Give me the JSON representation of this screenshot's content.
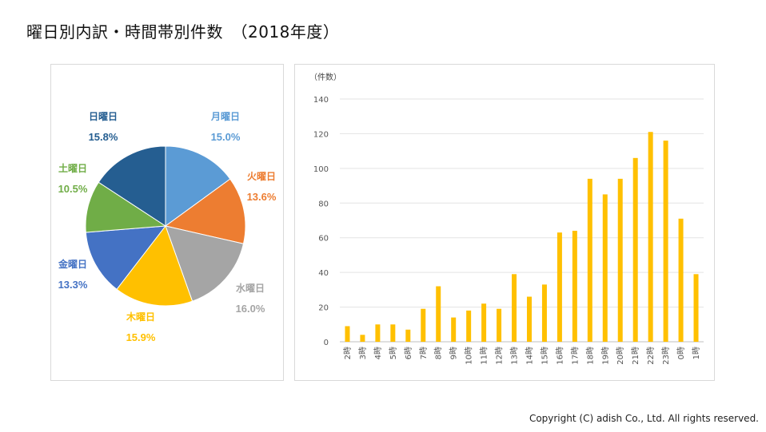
{
  "title": "曜日別内訳・時間帯別件数　（2018年度）",
  "copyright": "Copyright (C) adish Co., Ltd. All rights reserved.",
  "chart_data": [
    {
      "type": "pie",
      "categories": [
        "月曜日",
        "火曜日",
        "水曜日",
        "木曜日",
        "金曜日",
        "土曜日",
        "日曜日"
      ],
      "values": [
        15.0,
        13.6,
        16.0,
        15.9,
        13.3,
        10.5,
        15.8
      ],
      "labels": [
        "15.0%",
        "13.6%",
        "16.0%",
        "15.9%",
        "13.3%",
        "10.5%",
        "15.8%"
      ],
      "colors": [
        "#5b9bd5",
        "#ed7d31",
        "#a5a5a5",
        "#ffc000",
        "#4472c4",
        "#70ad47",
        "#255e91"
      ],
      "label_colors": [
        "#5b9bd5",
        "#ed7d31",
        "#a5a5a5",
        "#ffc000",
        "#4472c4",
        "#70ad47",
        "#255e91"
      ]
    },
    {
      "type": "bar",
      "ylabel": "（件数）",
      "categories": [
        "2時",
        "3時",
        "4時",
        "5時",
        "6時",
        "7時",
        "8時",
        "9時",
        "10時",
        "11時",
        "12時",
        "13時",
        "14時",
        "15時",
        "16時",
        "17時",
        "18時",
        "19時",
        "20時",
        "21時",
        "22時",
        "23時",
        "0時",
        "1時"
      ],
      "values": [
        9,
        4,
        10,
        10,
        7,
        19,
        32,
        14,
        18,
        22,
        19,
        39,
        26,
        33,
        63,
        64,
        94,
        85,
        94,
        106,
        121,
        116,
        71,
        39
      ],
      "ylim": [
        0,
        140
      ],
      "yticks": [
        0,
        20,
        40,
        60,
        80,
        100,
        120,
        140
      ],
      "color": "#ffc000",
      "grid": true
    }
  ]
}
